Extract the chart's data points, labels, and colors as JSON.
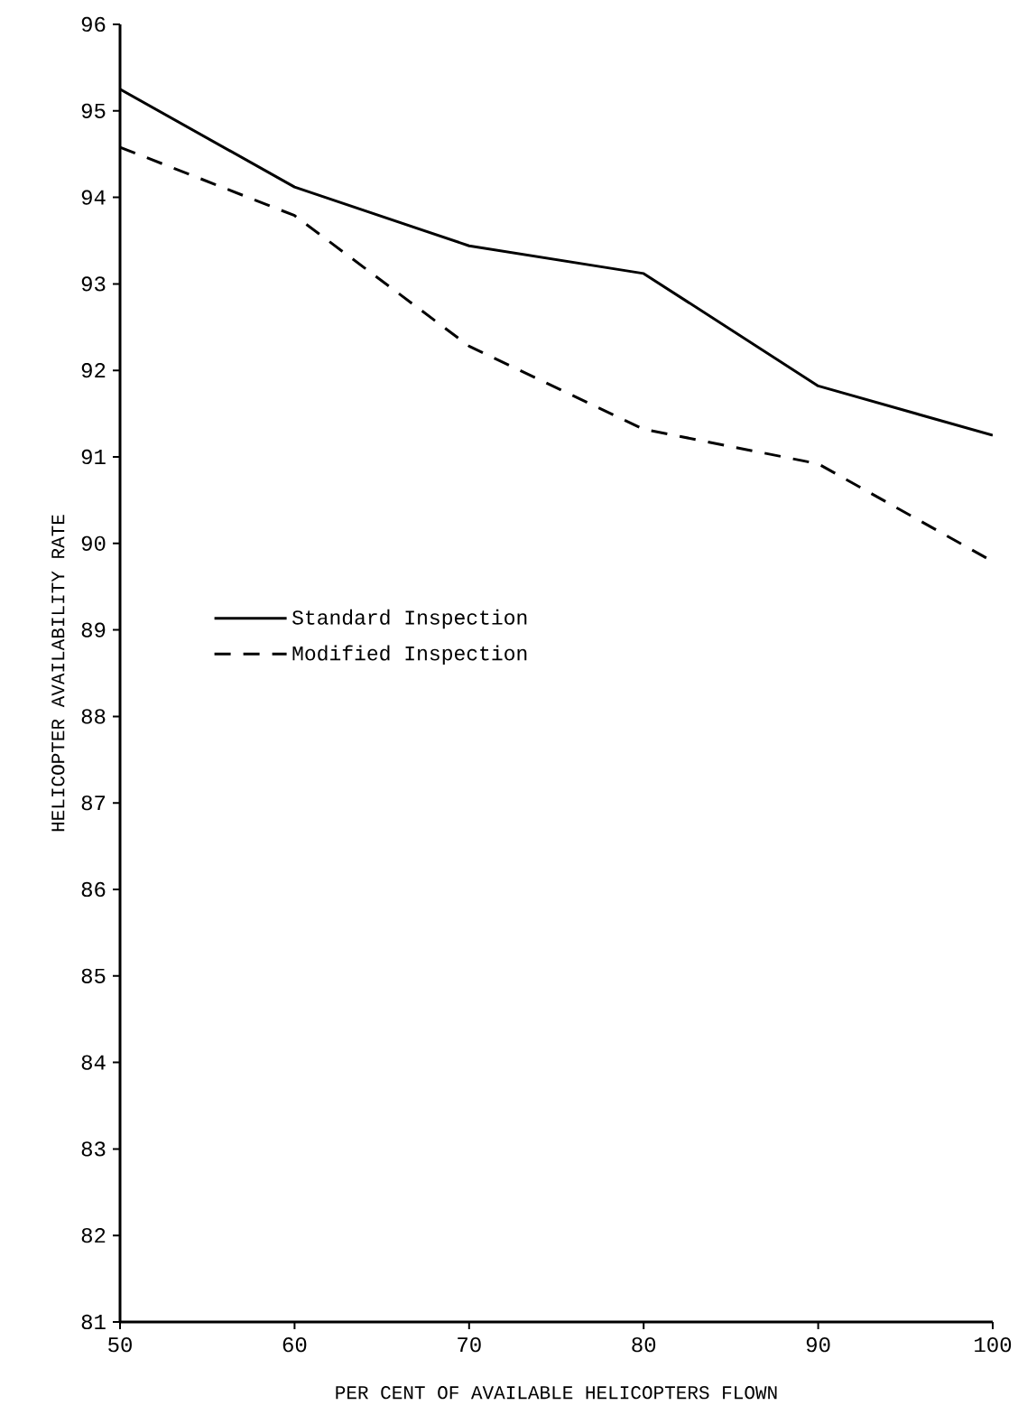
{
  "chart_data": {
    "type": "line",
    "xlabel": "PER CENT OF AVAILABLE HELICOPTERS FLOWN",
    "ylabel": "HELICOPTER AVAILABILITY RATE",
    "x": [
      50,
      60,
      70,
      80,
      90,
      100
    ],
    "xlim": [
      50,
      100
    ],
    "xticks": [
      50,
      60,
      70,
      80,
      90,
      100
    ],
    "ylim": [
      81,
      96
    ],
    "yticks": [
      81,
      82,
      83,
      84,
      85,
      86,
      87,
      88,
      89,
      90,
      91,
      92,
      93,
      94,
      95,
      96
    ],
    "series": [
      {
        "name": "Standard Inspection",
        "color": "#000000",
        "line_style": "solid",
        "values": [
          95.25,
          94.12,
          93.44,
          93.12,
          91.82,
          91.25
        ]
      },
      {
        "name": "Modified Inspection",
        "color": "#000000",
        "line_style": "dashed",
        "values": [
          94.58,
          93.79,
          92.28,
          91.32,
          90.92,
          89.79
        ]
      }
    ],
    "legend": "left",
    "grid": false,
    "marker": "none"
  }
}
